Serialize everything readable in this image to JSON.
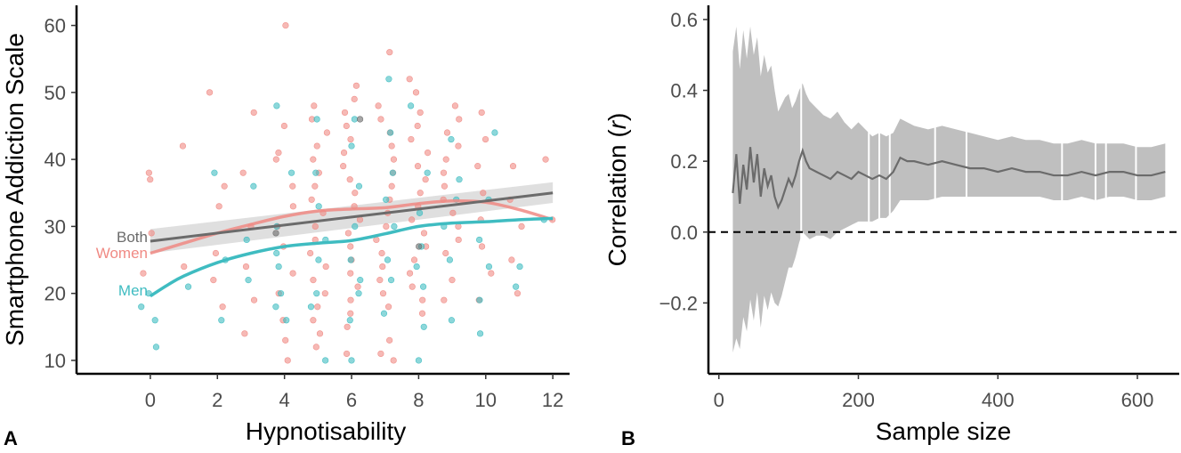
{
  "chart_data": [
    {
      "panel_label": "A",
      "type": "scatter",
      "xlabel": "Hypnotisability",
      "ylabel": "Smartphone Addiction Scale",
      "xlim": [
        -2.2,
        12.5
      ],
      "ylim": [
        8,
        63
      ],
      "xticks": [
        0,
        2,
        4,
        6,
        8,
        10,
        12
      ],
      "yticks": [
        10,
        20,
        30,
        40,
        50,
        60
      ],
      "colors": {
        "women": "#f08a84",
        "men": "#3fbcc1",
        "both": "#6b6b6b",
        "band": "#d9d9d9"
      },
      "points": {
        "women": [
          [
            0,
            37
          ],
          [
            0,
            29
          ],
          [
            0,
            23
          ],
          [
            0.1,
            38
          ],
          [
            1,
            42
          ],
          [
            1,
            24
          ],
          [
            2,
            50
          ],
          [
            2,
            36
          ],
          [
            2,
            33
          ],
          [
            2,
            26
          ],
          [
            2,
            22
          ],
          [
            2,
            18
          ],
          [
            3,
            47
          ],
          [
            3,
            38
          ],
          [
            3,
            30
          ],
          [
            3,
            24
          ],
          [
            3,
            19
          ],
          [
            3,
            14
          ],
          [
            4,
            60
          ],
          [
            4,
            45
          ],
          [
            4,
            41
          ],
          [
            4,
            40
          ],
          [
            4,
            36
          ],
          [
            4,
            33
          ],
          [
            4,
            30
          ],
          [
            4,
            27
          ],
          [
            4,
            23
          ],
          [
            4,
            20
          ],
          [
            4,
            16
          ],
          [
            4,
            13
          ],
          [
            4,
            10
          ],
          [
            5,
            48
          ],
          [
            5,
            46
          ],
          [
            5,
            44
          ],
          [
            5,
            42
          ],
          [
            5,
            40
          ],
          [
            5,
            38
          ],
          [
            5,
            36
          ],
          [
            5,
            34
          ],
          [
            5,
            32
          ],
          [
            5,
            30
          ],
          [
            5,
            28
          ],
          [
            5,
            26
          ],
          [
            5,
            24
          ],
          [
            5,
            22
          ],
          [
            5,
            20
          ],
          [
            5,
            18
          ],
          [
            5,
            16
          ],
          [
            5,
            14
          ],
          [
            5,
            12
          ],
          [
            6,
            51
          ],
          [
            6,
            49
          ],
          [
            6,
            47
          ],
          [
            6,
            45
          ],
          [
            6,
            43
          ],
          [
            6,
            41
          ],
          [
            6,
            39
          ],
          [
            6,
            37
          ],
          [
            6,
            35
          ],
          [
            6,
            33
          ],
          [
            6,
            31
          ],
          [
            6,
            29
          ],
          [
            6,
            27
          ],
          [
            6,
            25
          ],
          [
            6,
            23
          ],
          [
            6,
            21
          ],
          [
            6,
            19
          ],
          [
            6,
            17
          ],
          [
            6,
            15
          ],
          [
            6,
            11
          ],
          [
            7,
            56
          ],
          [
            7,
            48
          ],
          [
            7,
            46
          ],
          [
            7,
            44
          ],
          [
            7,
            42
          ],
          [
            7,
            40
          ],
          [
            7,
            38
          ],
          [
            7,
            36
          ],
          [
            7,
            34
          ],
          [
            7,
            32
          ],
          [
            7,
            30
          ],
          [
            7,
            28
          ],
          [
            7,
            26
          ],
          [
            7,
            24
          ],
          [
            7,
            22
          ],
          [
            7,
            20
          ],
          [
            7,
            18
          ],
          [
            7,
            13
          ],
          [
            7,
            11
          ],
          [
            7,
            10
          ],
          [
            8,
            52
          ],
          [
            8,
            50
          ],
          [
            8,
            47
          ],
          [
            8,
            45
          ],
          [
            8,
            43
          ],
          [
            8,
            41
          ],
          [
            8,
            39
          ],
          [
            8,
            37
          ],
          [
            8,
            35
          ],
          [
            8,
            33
          ],
          [
            8,
            31
          ],
          [
            8,
            29
          ],
          [
            8,
            27
          ],
          [
            8,
            25
          ],
          [
            8,
            23
          ],
          [
            8,
            21
          ],
          [
            8,
            19
          ],
          [
            8,
            17
          ],
          [
            9,
            48
          ],
          [
            9,
            46
          ],
          [
            9,
            44
          ],
          [
            9,
            42
          ],
          [
            9,
            40
          ],
          [
            9,
            38
          ],
          [
            9,
            36
          ],
          [
            9,
            34
          ],
          [
            9,
            32
          ],
          [
            9,
            30
          ],
          [
            9,
            28
          ],
          [
            9,
            26
          ],
          [
            9,
            22
          ],
          [
            9,
            19
          ],
          [
            10,
            47
          ],
          [
            10,
            43
          ],
          [
            10,
            39
          ],
          [
            10,
            35
          ],
          [
            10,
            31
          ],
          [
            10,
            27
          ],
          [
            10,
            23
          ],
          [
            10,
            19
          ],
          [
            11,
            39
          ],
          [
            11,
            34
          ],
          [
            11,
            30
          ],
          [
            11,
            25
          ],
          [
            11,
            20
          ],
          [
            12,
            40
          ],
          [
            12,
            31
          ]
        ],
        "men": [
          [
            0,
            20
          ],
          [
            0,
            18
          ],
          [
            0,
            16
          ],
          [
            0.2,
            12
          ],
          [
            1,
            21
          ],
          [
            2,
            38
          ],
          [
            2,
            25
          ],
          [
            2,
            16
          ],
          [
            3,
            36
          ],
          [
            3,
            28
          ],
          [
            3,
            22
          ],
          [
            4,
            48
          ],
          [
            4,
            38
          ],
          [
            4,
            30
          ],
          [
            4,
            26
          ],
          [
            4,
            24
          ],
          [
            4,
            20
          ],
          [
            4,
            18
          ],
          [
            4,
            16
          ],
          [
            5,
            46
          ],
          [
            5,
            38
          ],
          [
            5,
            33
          ],
          [
            5,
            28
          ],
          [
            5,
            25
          ],
          [
            5,
            20
          ],
          [
            5,
            18
          ],
          [
            5,
            10
          ],
          [
            6,
            46
          ],
          [
            6,
            42
          ],
          [
            6,
            36
          ],
          [
            6,
            30
          ],
          [
            6,
            25
          ],
          [
            6,
            22
          ],
          [
            6,
            20
          ],
          [
            6,
            16
          ],
          [
            6,
            10
          ],
          [
            7,
            52
          ],
          [
            7,
            44
          ],
          [
            7,
            38
          ],
          [
            7,
            34
          ],
          [
            7,
            30
          ],
          [
            7,
            25
          ],
          [
            7,
            22
          ],
          [
            7,
            17
          ],
          [
            8,
            48
          ],
          [
            8,
            38
          ],
          [
            8,
            32
          ],
          [
            8,
            27
          ],
          [
            8,
            24
          ],
          [
            8,
            21
          ],
          [
            8,
            15
          ],
          [
            8,
            10
          ],
          [
            9,
            43
          ],
          [
            9,
            37
          ],
          [
            9,
            34
          ],
          [
            9,
            30
          ],
          [
            9,
            25
          ],
          [
            9,
            16
          ],
          [
            10,
            44
          ],
          [
            10,
            34
          ],
          [
            10,
            28
          ],
          [
            10,
            24
          ],
          [
            10,
            19
          ],
          [
            10,
            14
          ],
          [
            11,
            24
          ],
          [
            11,
            21
          ],
          [
            12,
            31
          ]
        ],
        "both": [
          [
            6,
            46
          ],
          [
            8,
            27
          ],
          [
            4,
            29
          ]
        ]
      },
      "fits": {
        "both": {
          "label": "Both",
          "x": [
            0,
            12
          ],
          "y": [
            27.8,
            35.0
          ],
          "band_lower": [
            26.0,
            33.5
          ],
          "band_upper": [
            29.6,
            36.6
          ]
        },
        "women": {
          "label": "Women",
          "x": [
            0,
            1,
            2,
            3,
            4,
            5,
            6,
            7,
            8,
            9,
            10,
            11,
            12
          ],
          "y": [
            26.0,
            27.5,
            29.0,
            30.3,
            31.5,
            32.3,
            32.6,
            32.8,
            33.4,
            33.8,
            33.6,
            32.5,
            31.0
          ]
        },
        "men": {
          "label": "Men",
          "x": [
            0,
            0.5,
            1,
            2,
            3,
            4,
            5,
            6,
            7,
            8,
            9,
            10,
            11,
            12
          ],
          "y": [
            19.6,
            21.2,
            22.6,
            24.6,
            26.0,
            27.0,
            27.5,
            27.9,
            28.9,
            30.0,
            30.5,
            30.7,
            31.0,
            31.2
          ]
        }
      }
    },
    {
      "panel_label": "B",
      "type": "line",
      "xlabel": "Sample size",
      "ylabel_prefix": "Correlation (",
      "ylabel_italic": "r",
      "ylabel_suffix": ")",
      "xlim": [
        -15,
        660
      ],
      "ylim": [
        -0.4,
        0.64
      ],
      "xticks": [
        0,
        200,
        400,
        600
      ],
      "ytick_values": [
        -0.2,
        0.0,
        0.2,
        0.4,
        0.6
      ],
      "ytick_labels": [
        "−0.2",
        "0.0",
        "0.2",
        "0.4",
        "0.6"
      ],
      "reference_line_y": 0.0,
      "colors": {
        "line": "#6b6b6b",
        "band": "#bfbfbf",
        "ref": "#000000"
      },
      "series": {
        "x": [
          20,
          25,
          30,
          35,
          40,
          45,
          50,
          55,
          60,
          65,
          70,
          75,
          80,
          85,
          90,
          95,
          100,
          105,
          110,
          115,
          120,
          125,
          130,
          140,
          150,
          160,
          170,
          180,
          190,
          200,
          210,
          220,
          230,
          240,
          250,
          260,
          270,
          280,
          300,
          320,
          340,
          360,
          380,
          400,
          420,
          440,
          460,
          480,
          500,
          520,
          540,
          560,
          580,
          600,
          620,
          640
        ],
        "r": [
          0.11,
          0.22,
          0.08,
          0.19,
          0.12,
          0.24,
          0.14,
          0.22,
          0.1,
          0.18,
          0.13,
          0.16,
          0.1,
          0.07,
          0.09,
          0.12,
          0.15,
          0.13,
          0.16,
          0.2,
          0.23,
          0.2,
          0.18,
          0.17,
          0.16,
          0.15,
          0.17,
          0.16,
          0.15,
          0.17,
          0.16,
          0.15,
          0.16,
          0.15,
          0.17,
          0.21,
          0.2,
          0.2,
          0.19,
          0.2,
          0.19,
          0.18,
          0.18,
          0.17,
          0.18,
          0.17,
          0.17,
          0.16,
          0.16,
          0.17,
          0.16,
          0.17,
          0.17,
          0.16,
          0.16,
          0.17
        ],
        "lower": [
          -0.34,
          -0.3,
          -0.33,
          -0.24,
          -0.28,
          -0.19,
          -0.25,
          -0.17,
          -0.27,
          -0.18,
          -0.22,
          -0.17,
          -0.2,
          -0.21,
          -0.18,
          -0.14,
          -0.1,
          -0.1,
          -0.07,
          -0.03,
          0.0,
          -0.01,
          -0.02,
          -0.01,
          -0.01,
          -0.02,
          0.0,
          0.01,
          0.02,
          0.03,
          0.03,
          0.03,
          0.04,
          0.04,
          0.06,
          0.09,
          0.09,
          0.09,
          0.09,
          0.1,
          0.1,
          0.1,
          0.1,
          0.1,
          0.1,
          0.1,
          0.1,
          0.09,
          0.09,
          0.1,
          0.09,
          0.1,
          0.1,
          0.09,
          0.09,
          0.1
        ],
        "upper": [
          0.51,
          0.58,
          0.46,
          0.57,
          0.49,
          0.58,
          0.5,
          0.55,
          0.44,
          0.5,
          0.45,
          0.47,
          0.4,
          0.34,
          0.36,
          0.38,
          0.39,
          0.35,
          0.37,
          0.4,
          0.42,
          0.39,
          0.37,
          0.35,
          0.33,
          0.32,
          0.34,
          0.31,
          0.29,
          0.31,
          0.29,
          0.27,
          0.28,
          0.27,
          0.28,
          0.32,
          0.31,
          0.3,
          0.29,
          0.3,
          0.29,
          0.28,
          0.27,
          0.26,
          0.27,
          0.26,
          0.26,
          0.25,
          0.25,
          0.26,
          0.25,
          0.25,
          0.25,
          0.24,
          0.24,
          0.25
        ]
      },
      "band_gaps_x": [
        118,
        215,
        230,
        245,
        310,
        355,
        492,
        540,
        555,
        598
      ]
    }
  ]
}
